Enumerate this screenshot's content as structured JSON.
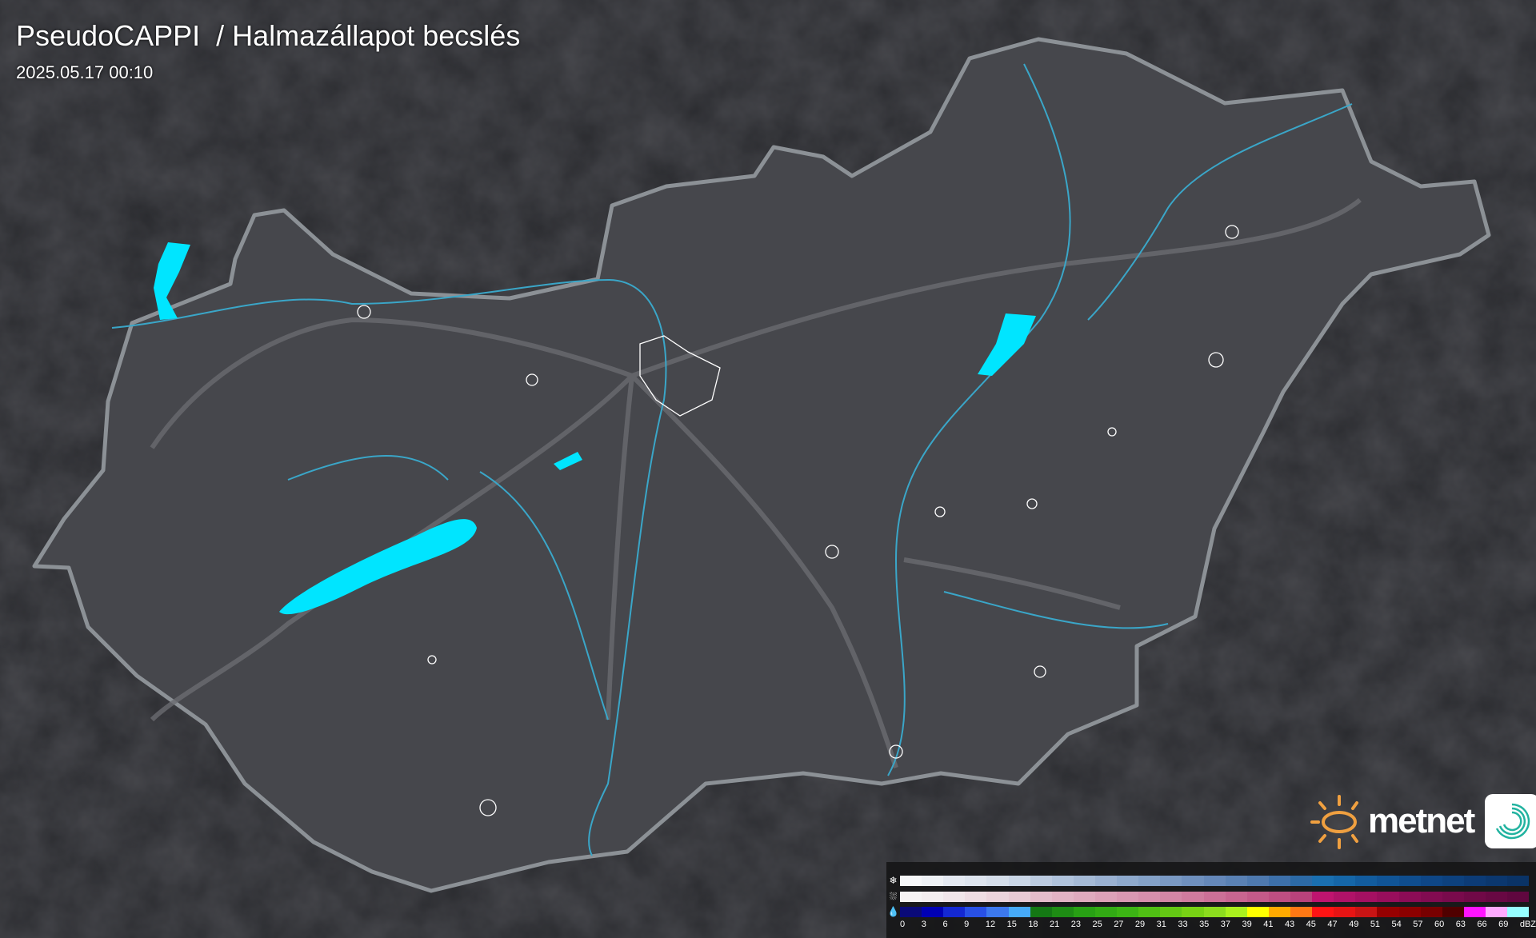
{
  "header": {
    "title": "PseudoCAPPI  / Halmazállapot becslés",
    "timestamp": "2025.05.17 00:10"
  },
  "logo": {
    "text": "metnet",
    "sun_color": "#f0a040",
    "app_icon": "metnet-swirl-icon"
  },
  "colors": {
    "background": "#2a2b2f",
    "country": "#46474c",
    "border": "#8c9196",
    "rivers": "#3aa6c8",
    "lakes": "#00e5ff",
    "roads": "#6a6b70",
    "settlements": "#ffffff"
  },
  "legend": {
    "rows": [
      {
        "type": "snow",
        "icon": "snowflake-icon",
        "colors": [
          "#f6f7f9",
          "#eef1f5",
          "#e4e9f1",
          "#dde4ee",
          "#d5deea",
          "#cad6e6",
          "#bccbe0",
          "#b0c3dc",
          "#a5bad6",
          "#9ab1d1",
          "#8ea9cc",
          "#84a1c7",
          "#7a99c3",
          "#6f90be",
          "#6588b9",
          "#5a81b4",
          "#4e79af",
          "#3d70aa",
          "#2c6aa6",
          "#1a6fb0",
          "#1566a8",
          "#125c9e",
          "#105496",
          "#0f4d8e",
          "#0e4686",
          "#0d417e",
          "#0c3b76",
          "#0b376e",
          "#0a3366"
        ]
      },
      {
        "type": "mixed",
        "icon": "sleet-icon",
        "colors": [
          "#f7f4f5",
          "#f4eef0",
          "#f1e6ea",
          "#eedde3",
          "#ebd4dc",
          "#e8cbd5",
          "#e4bccb",
          "#e2b3c4",
          "#dfaabe",
          "#dca1b8",
          "#d998b2",
          "#d68fac",
          "#d386a5",
          "#d07b9e",
          "#cc7097",
          "#c86590",
          "#c35a89",
          "#be4e82",
          "#b8427b",
          "#bf146f",
          "#b01268",
          "#a41062",
          "#980e5c",
          "#8c0c56",
          "#820b51",
          "#790a4c",
          "#700947",
          "#680843",
          "#60073f"
        ]
      },
      {
        "type": "rain",
        "icon": "raindrop-icon",
        "colors": [
          "#0a0a78",
          "#0000b4",
          "#1428d2",
          "#2850e6",
          "#3c78ee",
          "#46aaf8",
          "#147814",
          "#1e8c14",
          "#28a014",
          "#32aa14",
          "#3cb414",
          "#50c014",
          "#64c814",
          "#78d214",
          "#8cdc1e",
          "#aaf01e",
          "#ffff00",
          "#ffaa00",
          "#ff7814",
          "#ff1414",
          "#e61414",
          "#c81414",
          "#960000",
          "#8c0000",
          "#780000",
          "#500000",
          "#ff14ff",
          "#ffaaff",
          "#96ffff"
        ]
      }
    ],
    "ticks": [
      "0",
      "3",
      "6",
      "9",
      "12",
      "15",
      "18",
      "21",
      "23",
      "25",
      "27",
      "29",
      "31",
      "33",
      "35",
      "37",
      "39",
      "41",
      "43",
      "45",
      "47",
      "49",
      "51",
      "54",
      "57",
      "60",
      "63",
      "66",
      "69"
    ],
    "unit": "dBZ"
  }
}
